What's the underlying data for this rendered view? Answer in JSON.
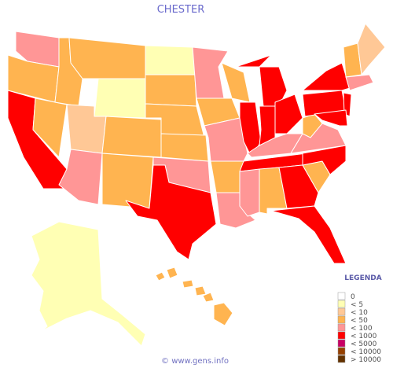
{
  "title": "CHESTER",
  "legend": {
    "title": "LEGENDA",
    "items": [
      {
        "label": "0",
        "color": "#ffffff"
      },
      {
        "label": "< 5",
        "color": "#ffffb4"
      },
      {
        "label": "< 10",
        "color": "#ffc896"
      },
      {
        "label": "< 50",
        "color": "#ffb450"
      },
      {
        "label": "< 100",
        "color": "#ff9696"
      },
      {
        "label": "< 1000",
        "color": "#ff0000"
      },
      {
        "label": "< 5000",
        "color": "#c80064"
      },
      {
        "label": "< 10000",
        "color": "#964000"
      },
      {
        "label": "> 10000",
        "color": "#643200"
      }
    ]
  },
  "footer": "© www.gens.info"
}
